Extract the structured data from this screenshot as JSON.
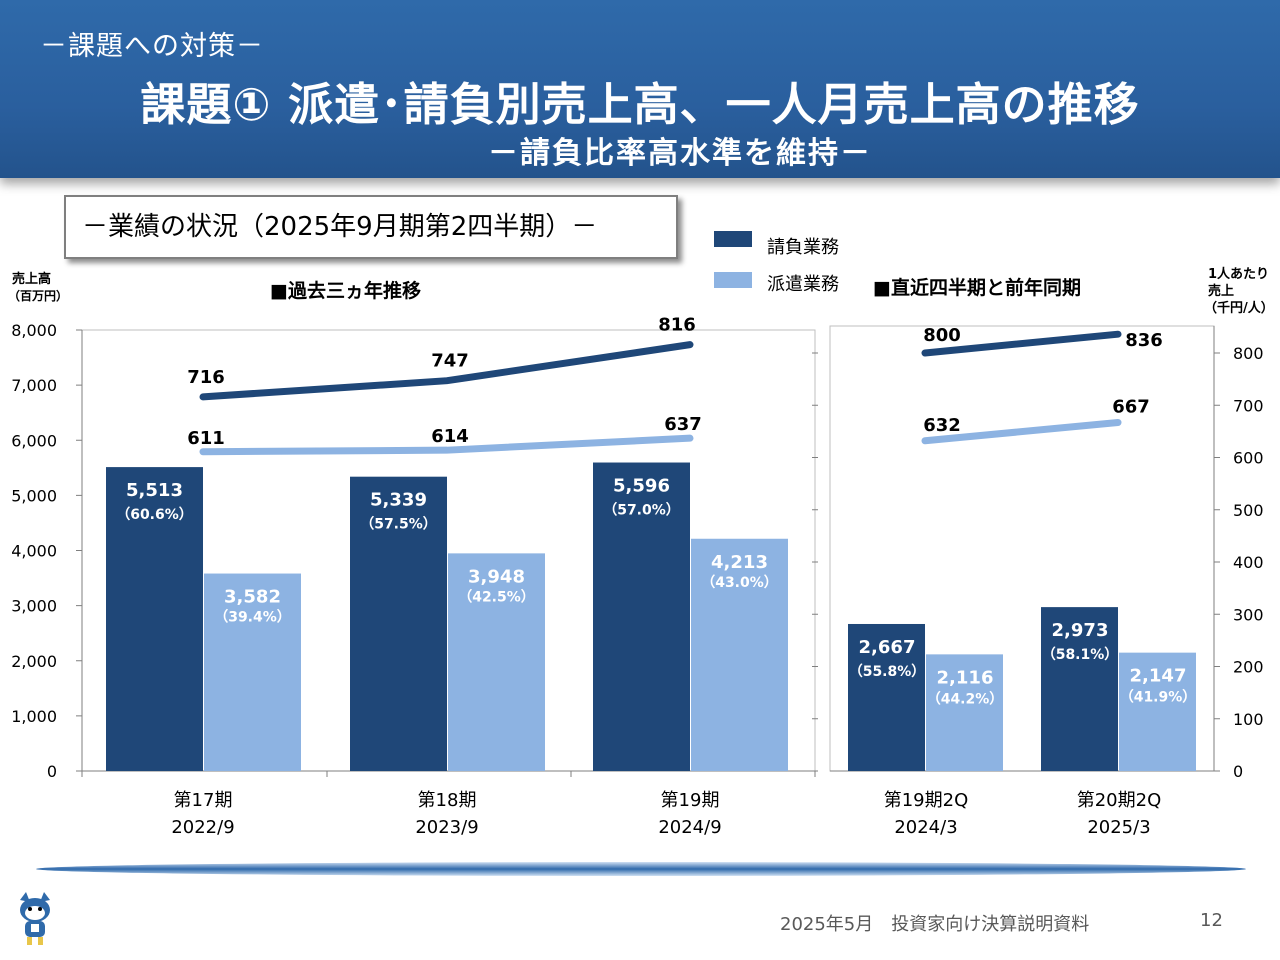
{
  "header": {
    "kicker": "－課題への対策－",
    "title": "課題① 派遣･請負別売上高、一人月売上高の推移",
    "subtitle": "－請負比率高水準を維持－"
  },
  "section_title": "－業績の状況（2025年9月期第2四半期）－",
  "legend": [
    {
      "label": "請負業務",
      "color": "#1f4778"
    },
    {
      "label": "派遣業務",
      "color": "#8db3e2"
    }
  ],
  "left_axis_unit": [
    "売上高",
    "（百万円）"
  ],
  "right_axis_unit": [
    "1人あたり",
    "売上",
    "（千円/人）"
  ],
  "footer": {
    "text": "2025年5月　投資家向け決算説明資料",
    "page": "12"
  },
  "colors": {
    "contract": "#1f4778",
    "dispatch": "#8db3e2",
    "header": "#2f6aaa"
  },
  "chart_data": [
    {
      "type": "bar",
      "title": "■過去三ヵ年推移",
      "ylabel": "売上高（百万円）",
      "ylim": [
        0,
        8000
      ],
      "yticks": [
        0,
        1000,
        2000,
        3000,
        4000,
        5000,
        6000,
        7000,
        8000
      ],
      "ytick_labels": [
        "0",
        "1,000",
        "2,000",
        "3,000",
        "4,000",
        "5,000",
        "6,000",
        "7,000",
        "8,000"
      ],
      "categories": [
        "第17期",
        "第18期",
        "第19期"
      ],
      "category_sub": [
        "2022/9",
        "2023/9",
        "2024/9"
      ],
      "series": [
        {
          "name": "請負業務",
          "values": [
            5513,
            5339,
            5596
          ],
          "labels": [
            "5,513",
            "5,339",
            "5,596"
          ],
          "pct": [
            "（60.6%）",
            "（57.5%）",
            "（57.0%）"
          ]
        },
        {
          "name": "派遣業務",
          "values": [
            3582,
            3948,
            4213
          ],
          "labels": [
            "3,582",
            "3,948",
            "4,213"
          ],
          "pct": [
            "（39.4%）",
            "（42.5%）",
            "（43.0%）"
          ]
        }
      ],
      "lines": [
        {
          "name": "請負業務",
          "values": [
            716,
            747,
            816
          ],
          "labels": [
            "716",
            "747",
            "816"
          ]
        },
        {
          "name": "派遣業務",
          "values": [
            611,
            614,
            637
          ],
          "labels": [
            "611",
            "614",
            "637"
          ]
        }
      ],
      "y2lim": [
        0,
        850
      ],
      "grid": false,
      "legend_position": "top"
    },
    {
      "type": "bar",
      "title": "■直近四半期と前年同期",
      "ylabel": "1人あたり売上（千円/人）",
      "ylim": [
        0,
        8000
      ],
      "categories": [
        "第19期2Q",
        "第20期2Q"
      ],
      "category_sub": [
        "2024/3",
        "2025/3"
      ],
      "series": [
        {
          "name": "請負業務",
          "values": [
            2667,
            2973
          ],
          "labels": [
            "2,667",
            "2,973"
          ],
          "pct": [
            "（55.8%）",
            "（58.1%）"
          ]
        },
        {
          "name": "派遣業務",
          "values": [
            2116,
            2147
          ],
          "labels": [
            "2,116",
            "2,147"
          ],
          "pct": [
            "（44.2%）",
            "（41.9%）"
          ]
        }
      ],
      "lines": [
        {
          "name": "請負業務",
          "values": [
            800,
            836
          ],
          "labels": [
            "800",
            "836"
          ]
        },
        {
          "name": "派遣業務",
          "values": [
            632,
            667
          ],
          "labels": [
            "632",
            "667"
          ]
        }
      ],
      "y2lim": [
        0,
        850
      ],
      "y2ticks": [
        0,
        100,
        200,
        300,
        400,
        500,
        600,
        700,
        800
      ],
      "ytick_labels": [
        "0",
        "100",
        "200",
        "300",
        "400",
        "500",
        "600",
        "700",
        "800"
      ],
      "grid": false
    }
  ]
}
